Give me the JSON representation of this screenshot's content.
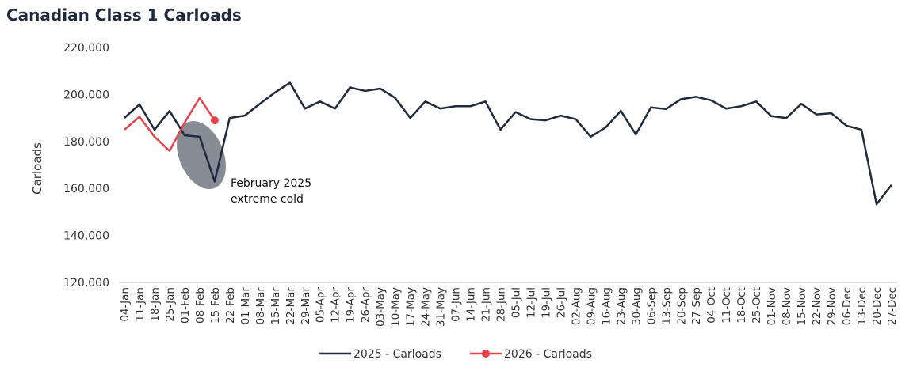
{
  "chart_data": {
    "type": "line",
    "title": "Canadian Class 1 Carloads",
    "ylabel": "Carloads",
    "categories": [
      "04-Jan",
      "11-Jan",
      "18-Jan",
      "25-Jan",
      "01-Feb",
      "08-Feb",
      "15-Feb",
      "22-Feb",
      "01-Mar",
      "08-Mar",
      "15-Mar",
      "22-Mar",
      "29-Mar",
      "05-Apr",
      "12-Apr",
      "19-Apr",
      "26-Apr",
      "03-May",
      "10-May",
      "17-May",
      "24-May",
      "31-May",
      "07-Jun",
      "14-Jun",
      "21-Jun",
      "28-Jun",
      "05-Jul",
      "12-Jul",
      "19-Jul",
      "26-Jul",
      "02-Aug",
      "09-Aug",
      "16-Aug",
      "23-Aug",
      "30-Aug",
      "06-Sep",
      "13-Sep",
      "20-Sep",
      "27-Sep",
      "04-Oct",
      "11-Oct",
      "18-Oct",
      "25-Oct",
      "01-Nov",
      "08-Nov",
      "15-Nov",
      "22-Nov",
      "29-Nov",
      "06-Dec",
      "13-Dec",
      "20-Dec",
      "27-Dec"
    ],
    "series": [
      {
        "name": "2025 - Carloads",
        "color": "#1f2a3c",
        "values": [
          190000,
          195800,
          185000,
          193000,
          182600,
          182000,
          163000,
          190000,
          191000,
          196000,
          200800,
          205000,
          194000,
          197000,
          194000,
          203000,
          201500,
          202500,
          198500,
          190000,
          197000,
          194000,
          195000,
          195000,
          197000,
          185000,
          192500,
          189500,
          189000,
          191000,
          189500,
          182000,
          186000,
          193000,
          183000,
          194500,
          193800,
          198000,
          199000,
          197500,
          194000,
          195000,
          197000,
          190800,
          190000,
          196000,
          191500,
          192000,
          186700,
          185000,
          153300,
          161500
        ]
      },
      {
        "name": "2026 - Carloads",
        "color": "#e8424a",
        "values": [
          185000,
          190500,
          182000,
          176000,
          188000,
          198500,
          189000,
          null,
          null,
          null,
          null,
          null,
          null,
          null,
          null,
          null,
          null,
          null,
          null,
          null,
          null,
          null,
          null,
          null,
          null,
          null,
          null,
          null,
          null,
          null,
          null,
          null,
          null,
          null,
          null,
          null,
          null,
          null,
          null,
          null,
          null,
          null,
          null,
          null,
          null,
          null,
          null,
          null,
          null,
          null,
          null,
          null
        ]
      }
    ],
    "ylim": [
      120000,
      220000
    ],
    "yticks": [
      {
        "value": 120000,
        "label": "120,000"
      },
      {
        "value": 140000,
        "label": "140,000"
      },
      {
        "value": 160000,
        "label": "160,000"
      },
      {
        "value": 180000,
        "label": "180,000"
      },
      {
        "value": 200000,
        "label": "200,000"
      },
      {
        "value": 220000,
        "label": "220,000"
      }
    ],
    "annotation": [
      "February 2025",
      "extreme cold"
    ]
  }
}
